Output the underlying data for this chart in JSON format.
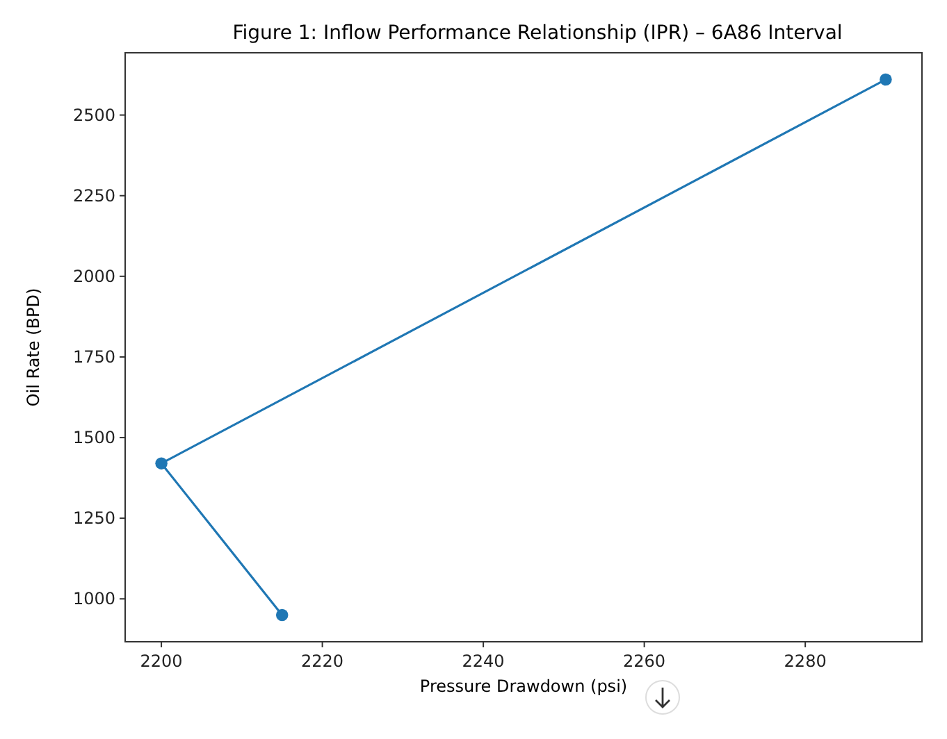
{
  "chart_data": {
    "type": "line",
    "title": "Figure 1: Inflow Performance Relationship (IPR) – 6A86 Interval",
    "xlabel": "Pressure Drawdown (psi)",
    "ylabel": "Oil Rate (BPD)",
    "x": [
      2215,
      2200,
      2290
    ],
    "series": [
      {
        "color": "#1f77b4",
        "values": [
          950,
          1420,
          2610
        ]
      }
    ],
    "marker": "circle",
    "grid": false,
    "xlim": [
      2195.5,
      2294.5
    ],
    "xticks": [
      2200,
      2220,
      2240,
      2260,
      2280
    ],
    "ylim": [
      867,
      2693
    ],
    "yticks": [
      1000,
      1250,
      1500,
      1750,
      2000,
      2250,
      2500
    ]
  }
}
